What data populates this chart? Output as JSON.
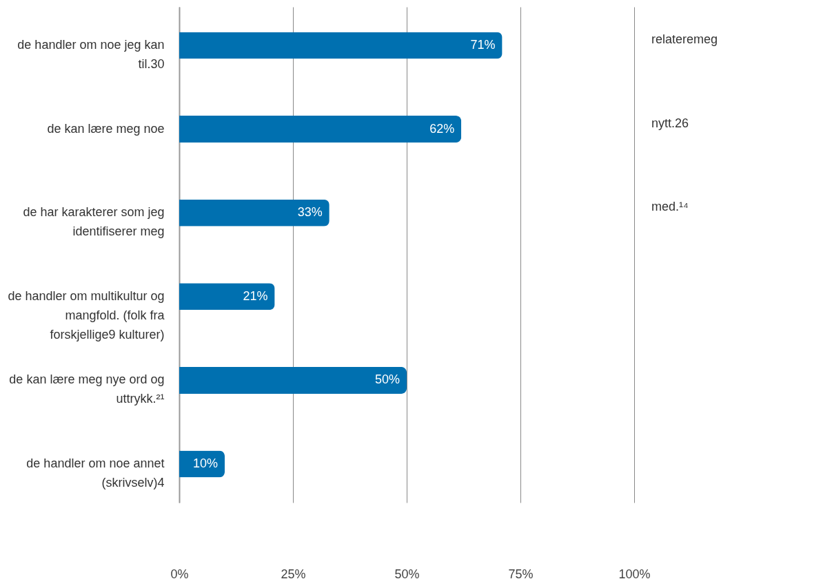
{
  "chart_data": {
    "type": "bar",
    "orientation": "horizontal",
    "categories": [
      "de handler om noe jeg kan til.30",
      "de kan lære meg noe",
      "de har karakterer som jeg identifiserer meg",
      "de handler om multikultur og mangfold. (folk fra forskjellige9 kulturer)",
      "de kan lære meg nye ord og uttrykk.²¹",
      "de handler om noe annet (skrivselv)4"
    ],
    "values": [
      71,
      62,
      33,
      21,
      50,
      10
    ],
    "value_labels": [
      "71%",
      "62%",
      "33%",
      "21%",
      "50%",
      "10%"
    ],
    "color": "#0070b0",
    "xlim": [
      0,
      100
    ],
    "xticks": [
      {
        "value": 0,
        "label": "0%"
      },
      {
        "value": 25,
        "label": "25%"
      },
      {
        "value": 50,
        "label": "50%"
      },
      {
        "value": 75,
        "label": "75%"
      },
      {
        "value": 100,
        "label": "100%"
      }
    ],
    "grid": "x",
    "annotations": [
      "relateremeg",
      "nytt.26",
      "med.¹⁴"
    ]
  }
}
